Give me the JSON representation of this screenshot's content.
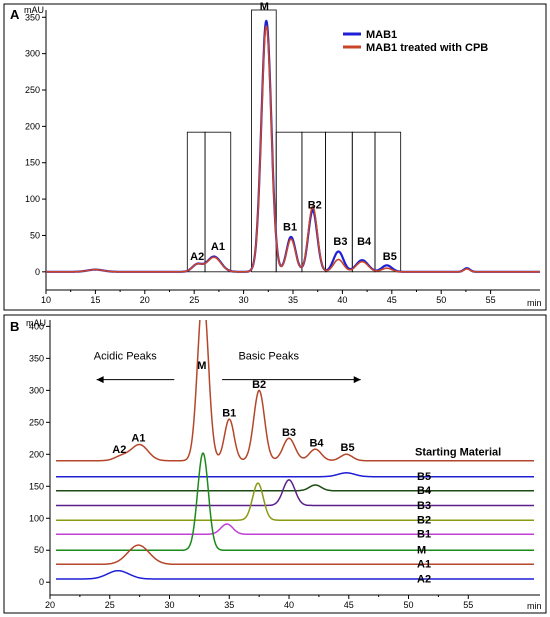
{
  "chart_data": [
    {
      "panel_label": "A",
      "type": "line",
      "yunit": "mAU",
      "xunit": "min",
      "xlim": [
        10,
        60
      ],
      "ylim": [
        -25,
        360
      ],
      "xticks": [
        10,
        15,
        20,
        25,
        30,
        35,
        40,
        45,
        50,
        55
      ],
      "yticks": [
        0,
        50,
        100,
        150,
        200,
        250,
        300,
        350
      ],
      "grid": false,
      "legend_position": "top-right",
      "colors": {
        "MAB1": "#1f1fd6",
        "MAB1 treated with CPB": "#c8452a"
      },
      "series": [
        {
          "name": "MAB1",
          "peaks": [
            [
              15,
              3,
              0.8
            ],
            [
              25.3,
              10,
              0.5
            ],
            [
              27,
              21,
              0.7
            ],
            [
              32.3,
              345,
              0.5
            ],
            [
              34.8,
              48,
              0.45
            ],
            [
              37,
              85,
              0.45
            ],
            [
              39.6,
              28,
              0.5
            ],
            [
              42,
              16,
              0.6
            ],
            [
              44.5,
              9,
              0.5
            ],
            [
              52.6,
              5,
              0.3
            ]
          ]
        },
        {
          "name": "MAB1 treated with CPB",
          "peaks": [
            [
              15,
              3,
              0.8
            ],
            [
              25.3,
              10,
              0.5
            ],
            [
              27,
              20,
              0.7
            ],
            [
              32.3,
              338,
              0.5
            ],
            [
              34.8,
              45,
              0.45
            ],
            [
              37,
              90,
              0.45
            ],
            [
              39.6,
              17,
              0.5
            ],
            [
              42,
              14,
              0.6
            ],
            [
              44.5,
              5,
              0.5
            ],
            [
              52.6,
              4,
              0.3
            ]
          ]
        }
      ],
      "boxes": [
        {
          "x0": 24.3,
          "x1": 26.1,
          "top": 192
        },
        {
          "x0": 26.1,
          "x1": 28.7,
          "top": 192
        },
        {
          "x0": 30.8,
          "x1": 33.3,
          "top": 360
        },
        {
          "x0": 33.3,
          "x1": 35.9,
          "top": 192
        },
        {
          "x0": 35.9,
          "x1": 38.3,
          "top": 192
        },
        {
          "x0": 38.3,
          "x1": 41,
          "top": 192
        },
        {
          "x0": 41,
          "x1": 43.3,
          "top": 192
        },
        {
          "x0": 43.3,
          "x1": 45.9,
          "top": 192
        }
      ],
      "peak_labels": [
        {
          "text": "A2",
          "x": 25.3,
          "y": 16
        },
        {
          "text": "A1",
          "x": 27.4,
          "y": 30
        },
        {
          "text": "M",
          "x": 32.1,
          "y": 360
        },
        {
          "text": "B1",
          "x": 34.7,
          "y": 57
        },
        {
          "text": "B2",
          "x": 37.2,
          "y": 87
        },
        {
          "text": "B3",
          "x": 39.8,
          "y": 37
        },
        {
          "text": "B4",
          "x": 42.2,
          "y": 37
        },
        {
          "text": "B5",
          "x": 44.8,
          "y": 16
        }
      ]
    },
    {
      "panel_label": "B",
      "type": "line",
      "yunit": "mAU",
      "xunit": "min",
      "xlim": [
        20,
        61
      ],
      "ylim": [
        -20,
        410
      ],
      "xticks": [
        20,
        25,
        30,
        35,
        40,
        45,
        50,
        55
      ],
      "yticks": [
        0,
        50,
        100,
        150,
        200,
        250,
        300,
        350,
        400
      ],
      "grid": false,
      "series": [
        {
          "name": "Starting Material",
          "color": "#b5462a",
          "offset": 190,
          "peaks": [
            [
              26,
              7,
              0.6
            ],
            [
              27.5,
              25,
              0.7
            ],
            [
              32.8,
              260,
              0.45
            ],
            [
              35,
              65,
              0.4
            ],
            [
              37.5,
              110,
              0.45
            ],
            [
              40,
              35,
              0.5
            ],
            [
              42.2,
              18,
              0.5
            ],
            [
              44.8,
              10,
              0.5
            ]
          ]
        },
        {
          "name": "B5",
          "color": "#1f1fd6",
          "offset": 165,
          "peaks": [
            [
              44.8,
              6,
              0.7
            ]
          ]
        },
        {
          "name": "B4",
          "color": "#1e4a14",
          "offset": 143,
          "peaks": [
            [
              42.2,
              9,
              0.5
            ]
          ]
        },
        {
          "name": "B3",
          "color": "#5a1f8a",
          "offset": 120,
          "peaks": [
            [
              40,
              40,
              0.5
            ]
          ]
        },
        {
          "name": "B2",
          "color": "#8a9a12",
          "offset": 97,
          "peaks": [
            [
              37.4,
              58,
              0.45
            ]
          ]
        },
        {
          "name": "B1",
          "color": "#c23fd6",
          "offset": 75,
          "peaks": [
            [
              34.8,
              16,
              0.5
            ]
          ]
        },
        {
          "name": "M",
          "color": "#1a8a1a",
          "offset": 50,
          "peaks": [
            [
              32.8,
              152,
              0.45
            ]
          ]
        },
        {
          "name": "A1",
          "color": "#b5462a",
          "offset": 28,
          "peaks": [
            [
              27.4,
              30,
              0.9
            ]
          ]
        },
        {
          "name": "A2",
          "color": "#1f1fd6",
          "offset": 5,
          "peaks": [
            [
              25.7,
              13,
              0.9
            ]
          ]
        }
      ],
      "peak_labels": [
        {
          "text": "A2",
          "x": 25.8,
          "y": 202
        },
        {
          "text": "A1",
          "x": 27.4,
          "y": 220
        },
        {
          "text": "M",
          "x": 32.7,
          "y": 333
        },
        {
          "text": "B1",
          "x": 35,
          "y": 259
        },
        {
          "text": "B2",
          "x": 37.5,
          "y": 304
        },
        {
          "text": "B3",
          "x": 40,
          "y": 229
        },
        {
          "text": "B4",
          "x": 42.3,
          "y": 212
        },
        {
          "text": "B5",
          "x": 44.9,
          "y": 205
        }
      ],
      "annotations": [
        {
          "text": "Acidic Peaks",
          "x": 26.3,
          "y": 348,
          "arrow": "left",
          "ax0": 23.9,
          "ax1": 30.4
        },
        {
          "text": "Basic Peaks",
          "x": 38.3,
          "y": 348,
          "arrow": "right",
          "ax0": 34.4,
          "ax1": 46
        }
      ]
    }
  ]
}
